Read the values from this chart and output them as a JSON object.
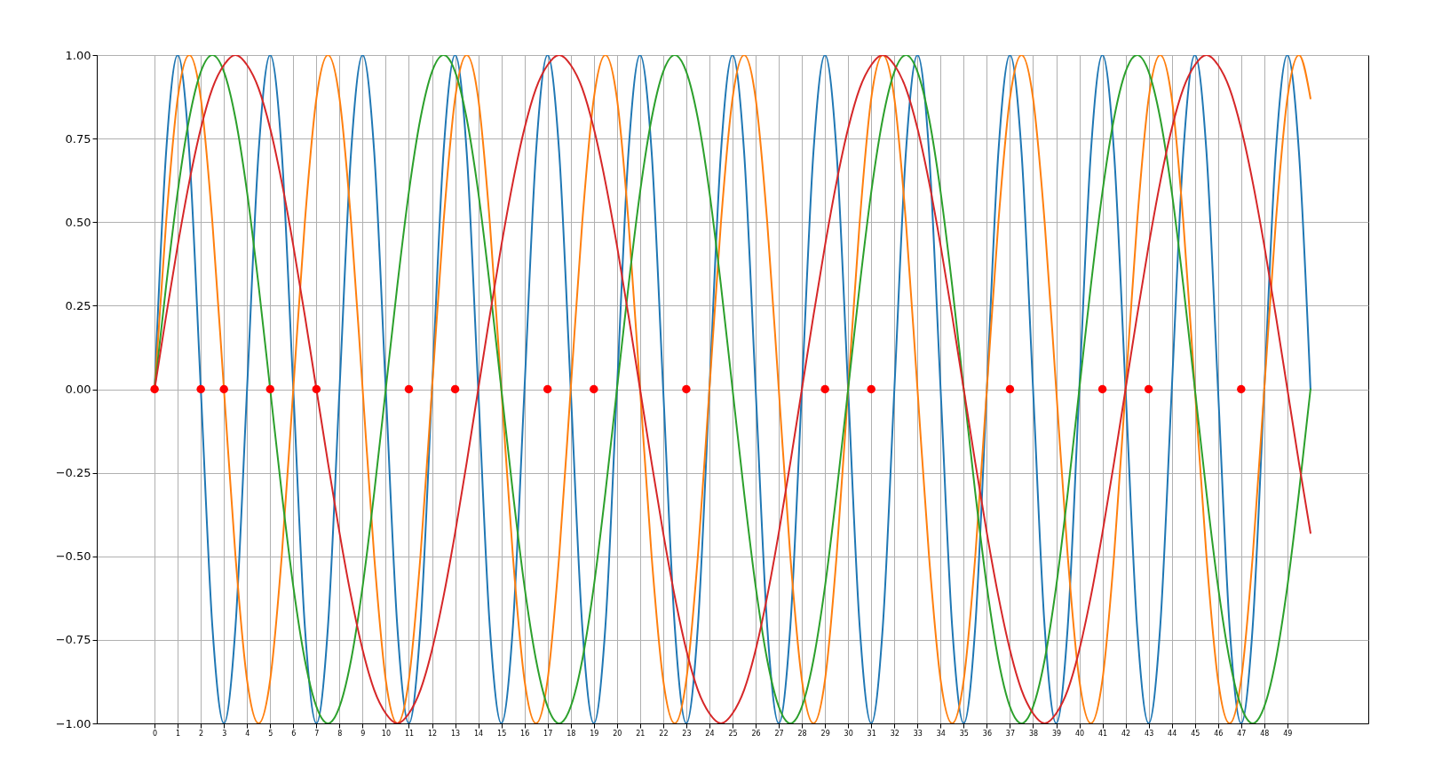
{
  "chart_data": {
    "type": "line",
    "x": [
      0,
      0.5,
      1,
      1.5,
      2,
      2.5,
      3,
      3.5,
      4,
      4.5,
      5,
      5.5,
      6,
      6.5,
      7,
      7.5,
      8,
      8.5,
      9,
      9.5,
      10,
      10.5,
      11,
      11.5,
      12,
      12.5,
      13,
      13.5,
      14,
      14.5,
      15,
      15.5,
      16,
      16.5,
      17,
      17.5,
      18,
      18.5,
      19,
      19.5,
      20,
      20.5,
      21,
      21.5,
      22,
      22.5,
      23,
      23.5,
      24,
      24.5,
      25,
      25.5,
      26,
      26.5,
      27,
      27.5,
      28,
      28.5,
      29,
      29.5,
      30,
      30.5,
      31,
      31.5,
      32,
      32.5,
      33,
      33.5,
      34,
      34.5,
      35,
      35.5,
      36,
      36.5,
      37,
      37.5,
      38,
      38.5,
      39,
      39.5,
      40,
      40.5,
      41,
      41.5,
      42,
      42.5,
      43,
      43.5,
      44,
      44.5,
      45,
      45.5,
      46,
      46.5,
      47,
      47.5,
      48,
      48.5,
      49,
      49.5,
      50
    ],
    "series": [
      {
        "color": "#1f77b4",
        "values": [
          0,
          0.71,
          1,
          0.71,
          0,
          -0.71,
          -1,
          -0.71,
          0,
          0.71,
          1,
          0.71,
          0,
          -0.71,
          -1,
          -0.71,
          0,
          0.71,
          1,
          0.71,
          0,
          -0.71,
          -1,
          -0.71,
          0,
          0.71,
          1,
          0.71,
          0,
          -0.71,
          -1,
          -0.71,
          0,
          0.71,
          1,
          0.71,
          0,
          -0.71,
          -1,
          -0.71,
          0,
          0.71,
          1,
          0.71,
          0,
          -0.71,
          -1,
          -0.71,
          0,
          0.71,
          1,
          0.71,
          0,
          -0.71,
          -1,
          -0.71,
          0,
          0.71,
          1,
          0.71,
          0,
          -0.71,
          -1,
          -0.71,
          0,
          0.71,
          1,
          0.71,
          0,
          -0.71,
          -1,
          -0.71,
          0,
          0.71,
          1,
          0.71,
          0,
          -0.71,
          -1,
          -0.71,
          0,
          0.71,
          1,
          0.71,
          0,
          -0.71,
          -1,
          -0.71,
          0,
          0.71,
          1,
          0.71,
          0,
          -0.71,
          -1,
          -0.71,
          0,
          0.71,
          1,
          0.71,
          0
        ]
      },
      {
        "color": "#ff7f0e",
        "values": [
          0,
          0.5,
          0.87,
          1,
          0.87,
          0.5,
          0,
          -0.5,
          -0.87,
          -1,
          -0.87,
          -0.5,
          0,
          0.5,
          0.87,
          1,
          0.87,
          0.5,
          0,
          -0.5,
          -0.87,
          -1,
          -0.87,
          -0.5,
          0,
          0.5,
          0.87,
          1,
          0.87,
          0.5,
          0,
          -0.5,
          -0.87,
          -1,
          -0.87,
          -0.5,
          0,
          0.5,
          0.87,
          1,
          0.87,
          0.5,
          0,
          -0.5,
          -0.87,
          -1,
          -0.87,
          -0.5,
          0,
          0.5,
          0.87,
          1,
          0.87,
          0.5,
          0,
          -0.5,
          -0.87,
          -1,
          -0.87,
          -0.5,
          0,
          0.5,
          0.87,
          1,
          0.87,
          0.5,
          0,
          -0.5,
          -0.87,
          -1,
          -0.87,
          -0.5,
          0,
          0.5,
          0.87,
          1,
          0.87,
          0.5,
          0,
          -0.5,
          -0.87,
          -1,
          -0.87,
          -0.5,
          0,
          0.5,
          0.87,
          1,
          0.87,
          0.5,
          0,
          -0.5,
          -0.87,
          -1,
          -0.87,
          -0.5,
          0,
          0.5,
          0.87,
          1,
          0.87
        ]
      },
      {
        "color": "#2ca02c",
        "values": [
          0,
          0.31,
          0.59,
          0.81,
          0.95,
          1,
          0.95,
          0.81,
          0.59,
          0.31,
          0,
          -0.31,
          -0.59,
          -0.81,
          -0.95,
          -1,
          -0.95,
          -0.81,
          -0.59,
          -0.31,
          0,
          0.31,
          0.59,
          0.81,
          0.95,
          1,
          0.95,
          0.81,
          0.59,
          0.31,
          0,
          -0.31,
          -0.59,
          -0.81,
          -0.95,
          -1,
          -0.95,
          -0.81,
          -0.59,
          -0.31,
          0,
          0.31,
          0.59,
          0.81,
          0.95,
          1,
          0.95,
          0.81,
          0.59,
          0.31,
          0,
          -0.31,
          -0.59,
          -0.81,
          -0.95,
          -1,
          -0.95,
          -0.81,
          -0.59,
          -0.31,
          0,
          0.31,
          0.59,
          0.81,
          0.95,
          1,
          0.95,
          0.81,
          0.59,
          0.31,
          0,
          -0.31,
          -0.59,
          -0.81,
          -0.95,
          -1,
          -0.95,
          -0.81,
          -0.59,
          -0.31,
          0,
          0.31,
          0.59,
          0.81,
          0.95,
          1,
          0.95,
          0.81,
          0.59,
          0.31,
          0,
          -0.31,
          -0.59,
          -0.81,
          -0.95,
          -1,
          -0.95,
          -0.81,
          -0.59,
          -0.31,
          0
        ]
      },
      {
        "color": "#d62728",
        "values": [
          0,
          0.22,
          0.43,
          0.62,
          0.78,
          0.9,
          0.97,
          1,
          0.97,
          0.9,
          0.78,
          0.62,
          0.43,
          0.22,
          0,
          -0.22,
          -0.43,
          -0.62,
          -0.78,
          -0.9,
          -0.97,
          -1,
          -0.97,
          -0.9,
          -0.78,
          -0.62,
          -0.43,
          -0.22,
          0,
          0.22,
          0.43,
          0.62,
          0.78,
          0.9,
          0.97,
          1,
          0.97,
          0.9,
          0.78,
          0.62,
          0.43,
          0.22,
          0,
          -0.22,
          -0.43,
          -0.62,
          -0.78,
          -0.9,
          -0.97,
          -1,
          -0.97,
          -0.9,
          -0.78,
          -0.62,
          -0.43,
          -0.22,
          0,
          0.22,
          0.43,
          0.62,
          0.78,
          0.9,
          0.97,
          1,
          0.97,
          0.9,
          0.78,
          0.62,
          0.43,
          0.22,
          0,
          -0.22,
          -0.43,
          -0.62,
          -0.78,
          -0.9,
          -0.97,
          -1,
          -0.97,
          -0.9,
          -0.78,
          -0.62,
          -0.43,
          -0.22,
          0,
          0.22,
          0.43,
          0.62,
          0.78,
          0.9,
          0.97,
          1,
          0.97,
          0.9,
          0.78,
          0.62,
          0.43,
          0.22,
          0,
          -0.22,
          -0.43
        ]
      },
      {
        "type": "scatter",
        "color": "#ff0000",
        "marker": "circle",
        "x": [
          0,
          2,
          3,
          5,
          7,
          11,
          13,
          17,
          19,
          23,
          29,
          31,
          37,
          41,
          43,
          47
        ],
        "values": [
          0,
          0,
          0,
          0,
          0,
          0,
          0,
          0,
          0,
          0,
          0,
          0,
          0,
          0,
          0,
          0
        ]
      }
    ],
    "xlim": [
      -2.5,
      52.5
    ],
    "xticks": [
      0,
      1,
      2,
      3,
      4,
      5,
      6,
      7,
      8,
      9,
      10,
      11,
      12,
      13,
      14,
      15,
      16,
      17,
      18,
      19,
      20,
      21,
      22,
      23,
      24,
      25,
      26,
      27,
      28,
      29,
      30,
      31,
      32,
      33,
      34,
      35,
      36,
      37,
      38,
      39,
      40,
      41,
      42,
      43,
      44,
      45,
      46,
      47,
      48,
      49
    ],
    "ylim": [
      -1,
      1
    ],
    "yticks": [
      {
        "value": -1,
        "label": "−1.00"
      },
      {
        "value": -0.75,
        "label": "−0.75"
      },
      {
        "value": -0.5,
        "label": "−0.50"
      },
      {
        "value": -0.25,
        "label": "−0.25"
      },
      {
        "value": 0,
        "label": "0.00"
      },
      {
        "value": 0.25,
        "label": "0.25"
      },
      {
        "value": 0.5,
        "label": "0.50"
      },
      {
        "value": 0.75,
        "label": "0.75"
      },
      {
        "value": 1,
        "label": "1.00"
      }
    ],
    "grid": true,
    "line_style": "solid"
  }
}
